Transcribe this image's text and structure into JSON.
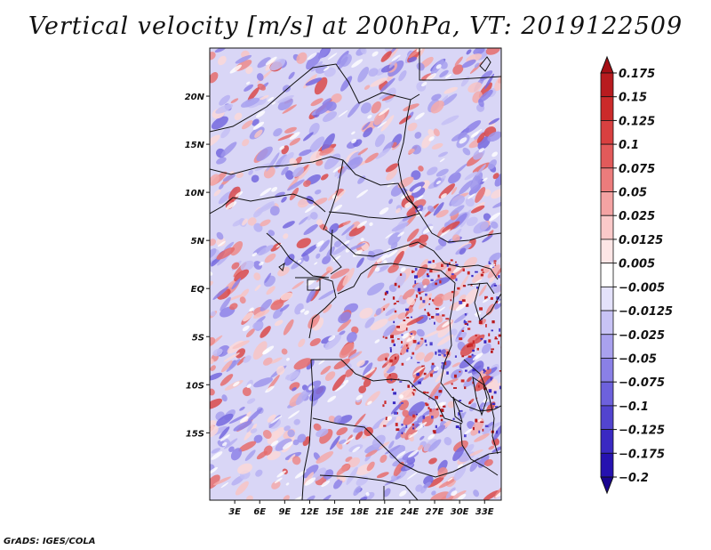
{
  "title": "Vertical velocity [m/s] at 200hPa, VT: 2019122509",
  "credit": "GrADS: IGES/COLA",
  "map": {
    "lon_range": [
      0,
      35
    ],
    "lat_range": [
      -22,
      25
    ],
    "lat_ticks": [
      {
        "label": "20N",
        "value": 20
      },
      {
        "label": "15N",
        "value": 15
      },
      {
        "label": "10N",
        "value": 10
      },
      {
        "label": "5N",
        "value": 5
      },
      {
        "label": "EQ",
        "value": 0
      },
      {
        "label": "5S",
        "value": -5
      },
      {
        "label": "10S",
        "value": -10
      },
      {
        "label": "15S",
        "value": -15
      }
    ],
    "lon_ticks": [
      {
        "label": "3E",
        "value": 3
      },
      {
        "label": "6E",
        "value": 6
      },
      {
        "label": "9E",
        "value": 9
      },
      {
        "label": "12E",
        "value": 12
      },
      {
        "label": "15E",
        "value": 15
      },
      {
        "label": "18E",
        "value": 18
      },
      {
        "label": "21E",
        "value": 21
      },
      {
        "label": "24E",
        "value": 24
      },
      {
        "label": "27E",
        "value": 27
      },
      {
        "label": "30E",
        "value": 30
      },
      {
        "label": "33E",
        "value": 33
      }
    ]
  },
  "colorbar": {
    "levels": [
      "0.175",
      "0.15",
      "0.125",
      "0.1",
      "0.075",
      "0.05",
      "0.025",
      "0.0125",
      "0.005",
      "−0.005",
      "−0.0125",
      "−0.025",
      "−0.05",
      "−0.075",
      "−0.1",
      "−0.125",
      "−0.175",
      "−0.2"
    ],
    "colors": [
      "#a50f15",
      "#b81b1f",
      "#cb2a2a",
      "#d84040",
      "#e25a5a",
      "#ec7c7c",
      "#f4a3a3",
      "#fbc9c9",
      "#fde6e6",
      "#ffffff",
      "#e4e2fb",
      "#c8c3f5",
      "#a9a1ee",
      "#8a80e6",
      "#6d61dc",
      "#5244cf",
      "#3a29c2",
      "#2612b0",
      "#1a0590"
    ]
  }
}
